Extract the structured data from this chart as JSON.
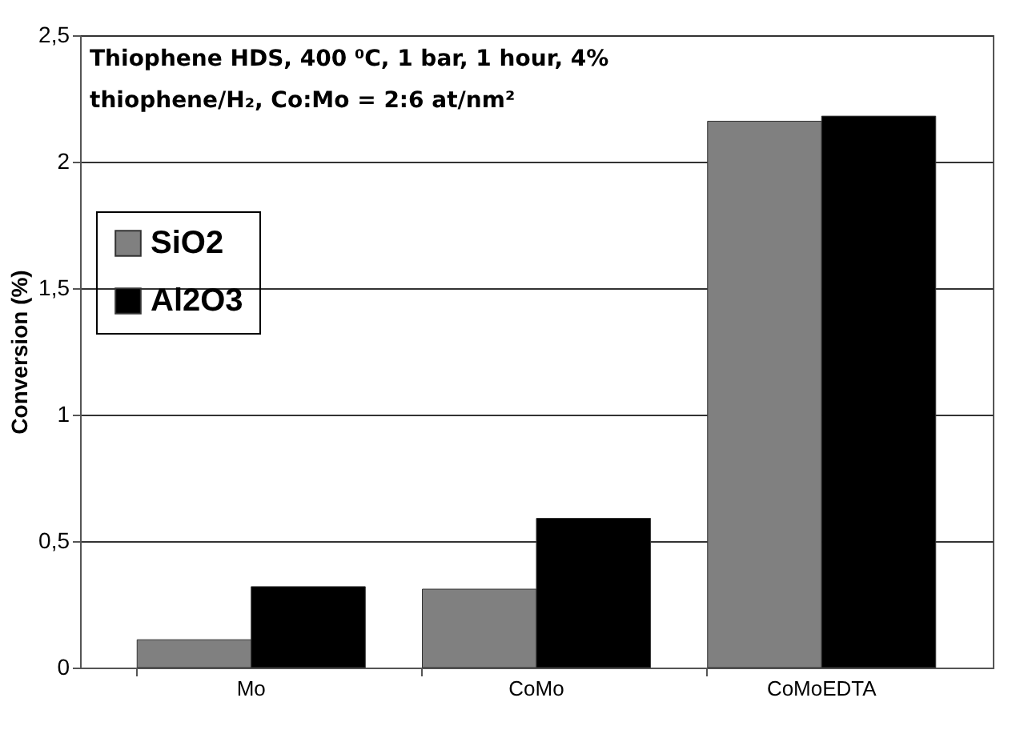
{
  "chart_data": {
    "type": "bar",
    "categories": [
      "Mo",
      "CoMo",
      "CoMoEDTA"
    ],
    "series": [
      {
        "name": "SiO2",
        "color": "#808080",
        "values": [
          0.11,
          0.31,
          2.16
        ]
      },
      {
        "name": "Al2O3",
        "color": "#000000",
        "values": [
          0.32,
          0.59,
          2.18
        ]
      }
    ],
    "ylabel": "Conversion (%)",
    "ylim": [
      0,
      2.5
    ],
    "yticks": [
      0,
      {
        "value": 0.5,
        "label": "0,5"
      },
      1,
      {
        "value": 1.5,
        "label": "1,5"
      },
      2,
      {
        "value": 2.5,
        "label": "2,5"
      }
    ],
    "grid": "y",
    "legend": "left",
    "annotations": [
      "Thiophene HDS, 400 ⁰C, 1 bar, 1 hour, 4%",
      "thiophene/H₂, Co:Mo = 2:6 at/nm²"
    ]
  }
}
